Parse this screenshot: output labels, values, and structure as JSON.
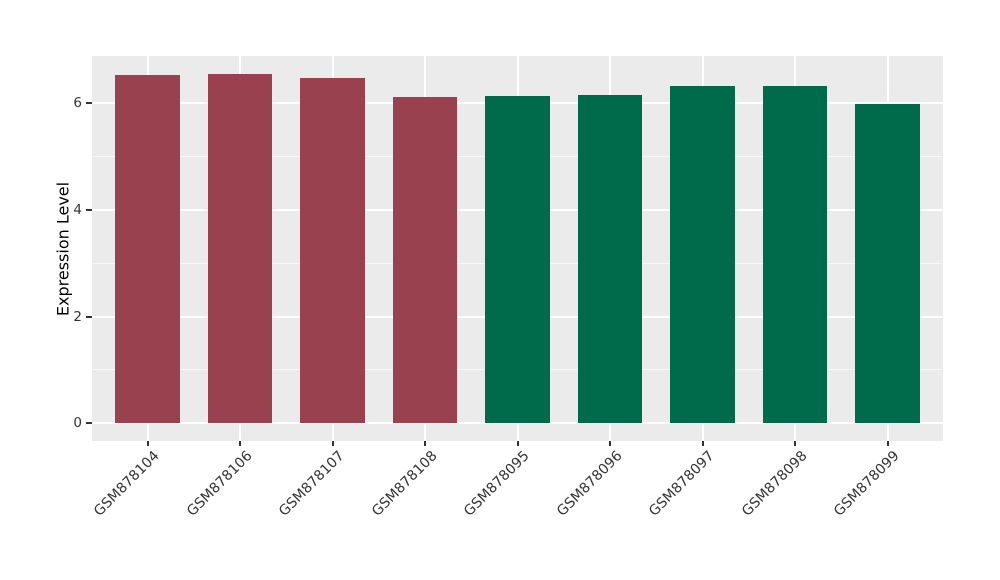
{
  "chart_data": {
    "type": "bar",
    "title": "",
    "xlabel": "",
    "ylabel": "Expression Level",
    "categories": [
      "GSM878104",
      "GSM878106",
      "GSM878107",
      "GSM878108",
      "GSM878095",
      "GSM878096",
      "GSM878097",
      "GSM878098",
      "GSM878099"
    ],
    "values": [
      6.53,
      6.55,
      6.47,
      6.12,
      6.14,
      6.15,
      6.31,
      6.32,
      5.98
    ],
    "bar_colors": [
      "#9A4150",
      "#9A4150",
      "#9A4150",
      "#9A4150",
      "#006B4B",
      "#006B4B",
      "#006B4B",
      "#006B4B",
      "#006B4B"
    ],
    "group_colors": {
      "left_group": "#9A4150",
      "right_group": "#006B4B"
    },
    "y_ticks": [
      0,
      2,
      4,
      6
    ],
    "y_minor_ticks": [
      1,
      3,
      5
    ],
    "ylim": [
      -0.33,
      6.88
    ],
    "bar_width_fraction": 0.7,
    "grid": true,
    "legend": false,
    "colors": {
      "panel_bg": "#EBEBEB",
      "grid_major": "#FFFFFF",
      "grid_minor": "#F7F7F7",
      "tick": "#333333",
      "axis_text": "#333333",
      "axis_title": "#000000"
    }
  }
}
